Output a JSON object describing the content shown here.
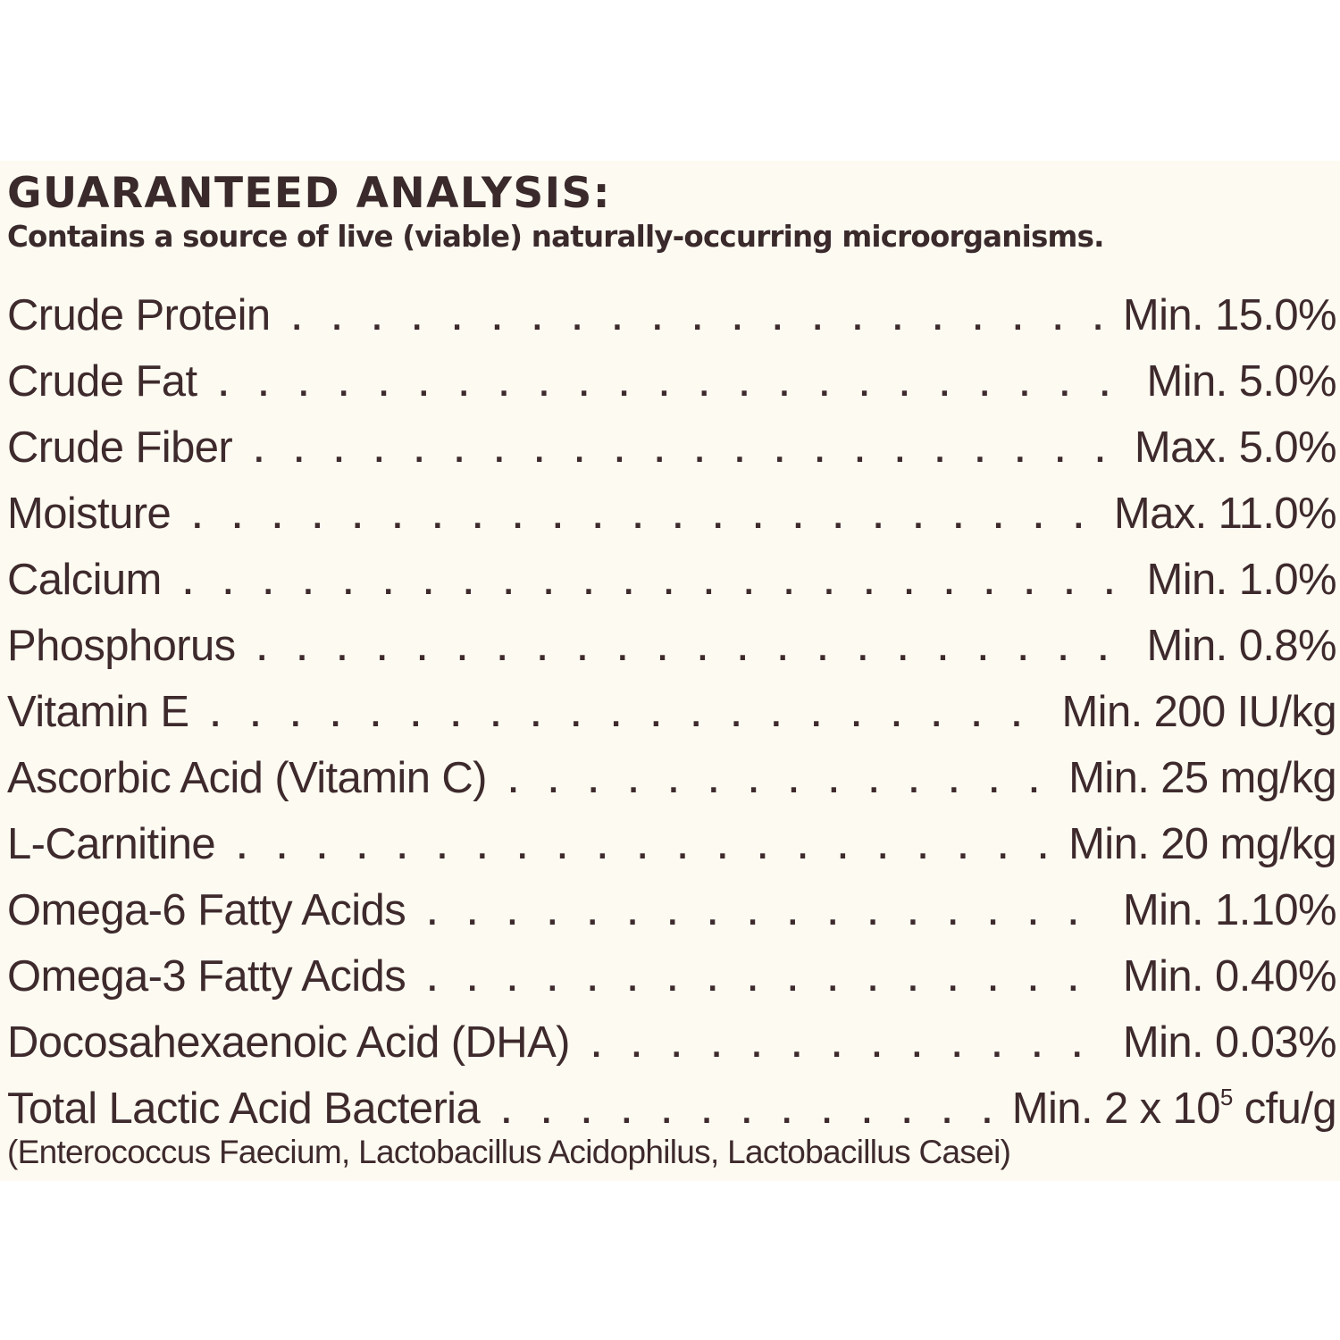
{
  "label": {
    "title": "GUARANTEED ANALYSIS:",
    "subtitle": "Contains a source of live (viable) naturally-occurring microorganisms.",
    "rows": [
      {
        "name": "Crude Protein",
        "value": "Min. 15.0%"
      },
      {
        "name": "Crude Fat",
        "value": "Min. 5.0%"
      },
      {
        "name": "Crude Fiber",
        "value": "Max. 5.0%"
      },
      {
        "name": "Moisture",
        "value": "Max. 11.0%"
      },
      {
        "name": "Calcium",
        "value": "Min. 1.0%"
      },
      {
        "name": "Phosphorus",
        "value": "Min. 0.8%"
      },
      {
        "name": "Vitamin E",
        "value": "Min. 200 IU/kg"
      },
      {
        "name": "Ascorbic Acid (Vitamin C)",
        "value": "Min. 25 mg/kg"
      },
      {
        "name": "L-Carnitine",
        "value": "Min. 20 mg/kg"
      },
      {
        "name": "Omega-6 Fatty Acids",
        "value": "Min. 1.10%"
      },
      {
        "name": "Omega-3 Fatty Acids",
        "value": "Min. 0.40%"
      },
      {
        "name": "Docosahexaenoic Acid (DHA)",
        "value": "Min. 0.03%"
      },
      {
        "name": "Total Lactic Acid Bacteria",
        "value": "Min. 2 x 10",
        "value_exponent": "5",
        "value_unit": " cfu/g"
      }
    ],
    "footnote": "(Enterococcus Faecium, Lactobacillus Acidophilus, Lactobacillus Casei)"
  },
  "colors": {
    "text": "#3e2a2d",
    "panel_background": "#fdfbf1",
    "page_background": "#ffffff"
  }
}
